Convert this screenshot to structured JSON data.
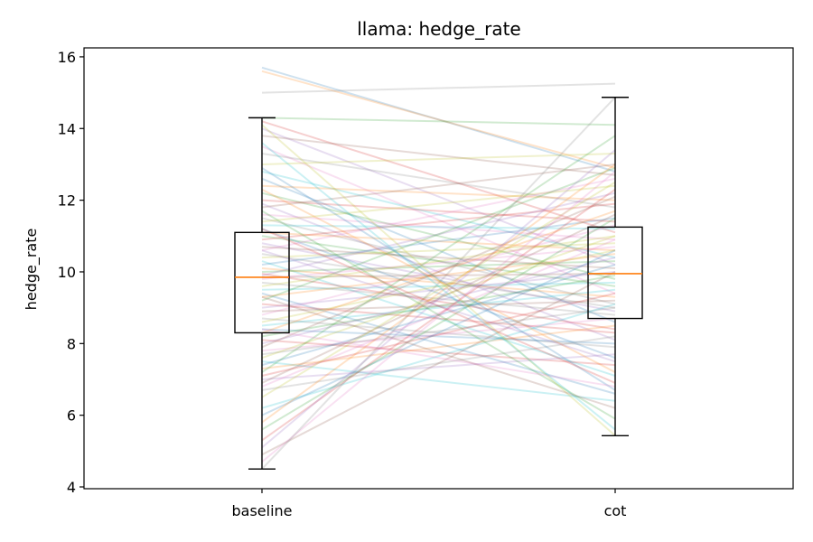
{
  "chart_data": {
    "type": "box-paired",
    "title": "llama: hedge_rate",
    "xlabel": "",
    "ylabel": "hedge_rate",
    "categories": [
      "baseline",
      "cot"
    ],
    "ylim": [
      3.95,
      16.25
    ],
    "yticks": [
      4,
      6,
      8,
      10,
      12,
      14,
      16
    ],
    "grid": false,
    "boxes": [
      {
        "name": "baseline",
        "whisker_low": 4.5,
        "q1": 8.3,
        "median": 9.85,
        "q3": 11.1,
        "whisker_high": 14.3
      },
      {
        "name": "cot",
        "whisker_low": 5.43,
        "q1": 8.7,
        "median": 9.95,
        "q3": 11.25,
        "whisker_high": 14.87
      }
    ],
    "colors": {
      "box": "#000000",
      "median": "#ff7f0e",
      "palette": [
        "#1f77b4",
        "#ff7f0e",
        "#2ca02c",
        "#d62728",
        "#9467bd",
        "#8c564b",
        "#e377c2",
        "#7f7f7f",
        "#bcbd22",
        "#17becf"
      ]
    },
    "pairs": [
      [
        15.7,
        12.8
      ],
      [
        15.6,
        12.9
      ],
      [
        14.3,
        14.1
      ],
      [
        14.2,
        11.1
      ],
      [
        14.0,
        10.2
      ],
      [
        13.8,
        12.7
      ],
      [
        13.5,
        9.4
      ],
      [
        13.3,
        11.8
      ],
      [
        13.0,
        13.3
      ],
      [
        12.8,
        10.4
      ],
      [
        12.6,
        8.6
      ],
      [
        12.4,
        12.0
      ],
      [
        12.2,
        9.8
      ],
      [
        12.0,
        11.4
      ],
      [
        11.9,
        8.1
      ],
      [
        11.8,
        13.0
      ],
      [
        11.6,
        10.9
      ],
      [
        11.5,
        9.1
      ],
      [
        11.4,
        12.4
      ],
      [
        11.3,
        11.2
      ],
      [
        11.2,
        7.6
      ],
      [
        11.1,
        10.6
      ],
      [
        11.0,
        9.6
      ],
      [
        10.9,
        11.9
      ],
      [
        10.8,
        8.9
      ],
      [
        10.7,
        10.1
      ],
      [
        10.6,
        12.6
      ],
      [
        10.5,
        9.0
      ],
      [
        10.4,
        10.8
      ],
      [
        10.3,
        7.1
      ],
      [
        10.2,
        11.5
      ],
      [
        10.1,
        9.3
      ],
      [
        10.0,
        10.3
      ],
      [
        9.95,
        8.4
      ],
      [
        9.9,
        12.2
      ],
      [
        9.85,
        9.95
      ],
      [
        9.8,
        10.7
      ],
      [
        9.7,
        8.8
      ],
      [
        9.6,
        11.0
      ],
      [
        9.5,
        9.7
      ],
      [
        9.4,
        6.6
      ],
      [
        9.3,
        10.5
      ],
      [
        9.2,
        12.9
      ],
      [
        9.1,
        8.3
      ],
      [
        9.0,
        10.0
      ],
      [
        8.9,
        9.2
      ],
      [
        8.8,
        11.3
      ],
      [
        8.7,
        7.9
      ],
      [
        8.6,
        10.6
      ],
      [
        8.5,
        9.5
      ],
      [
        8.4,
        8.0
      ],
      [
        8.3,
        11.7
      ],
      [
        8.2,
        9.9
      ],
      [
        8.1,
        7.4
      ],
      [
        8.0,
        10.4
      ],
      [
        7.9,
        12.1
      ],
      [
        7.8,
        8.7
      ],
      [
        7.7,
        9.0
      ],
      [
        7.6,
        11.0
      ],
      [
        7.5,
        6.4
      ],
      [
        7.4,
        10.2
      ],
      [
        7.3,
        8.5
      ],
      [
        7.2,
        13.8
      ],
      [
        7.1,
        9.4
      ],
      [
        7.0,
        7.7
      ],
      [
        6.9,
        11.6
      ],
      [
        6.8,
        10.9
      ],
      [
        6.7,
        8.2
      ],
      [
        6.5,
        12.5
      ],
      [
        6.2,
        9.1
      ],
      [
        6.0,
        10.6
      ],
      [
        5.8,
        13.0
      ],
      [
        5.6,
        11.5
      ],
      [
        5.3,
        12.3
      ],
      [
        5.1,
        13.4
      ],
      [
        4.9,
        10.0
      ],
      [
        4.7,
        12.8
      ],
      [
        4.5,
        14.87
      ],
      [
        14.1,
        5.43
      ],
      [
        13.6,
        5.6
      ],
      [
        12.9,
        6.7
      ],
      [
        12.3,
        7.2
      ],
      [
        11.7,
        5.9
      ],
      [
        11.2,
        6.9
      ],
      [
        10.6,
        7.5
      ],
      [
        9.3,
        6.2
      ],
      [
        8.4,
        6.8
      ],
      [
        15.0,
        15.25
      ]
    ]
  }
}
